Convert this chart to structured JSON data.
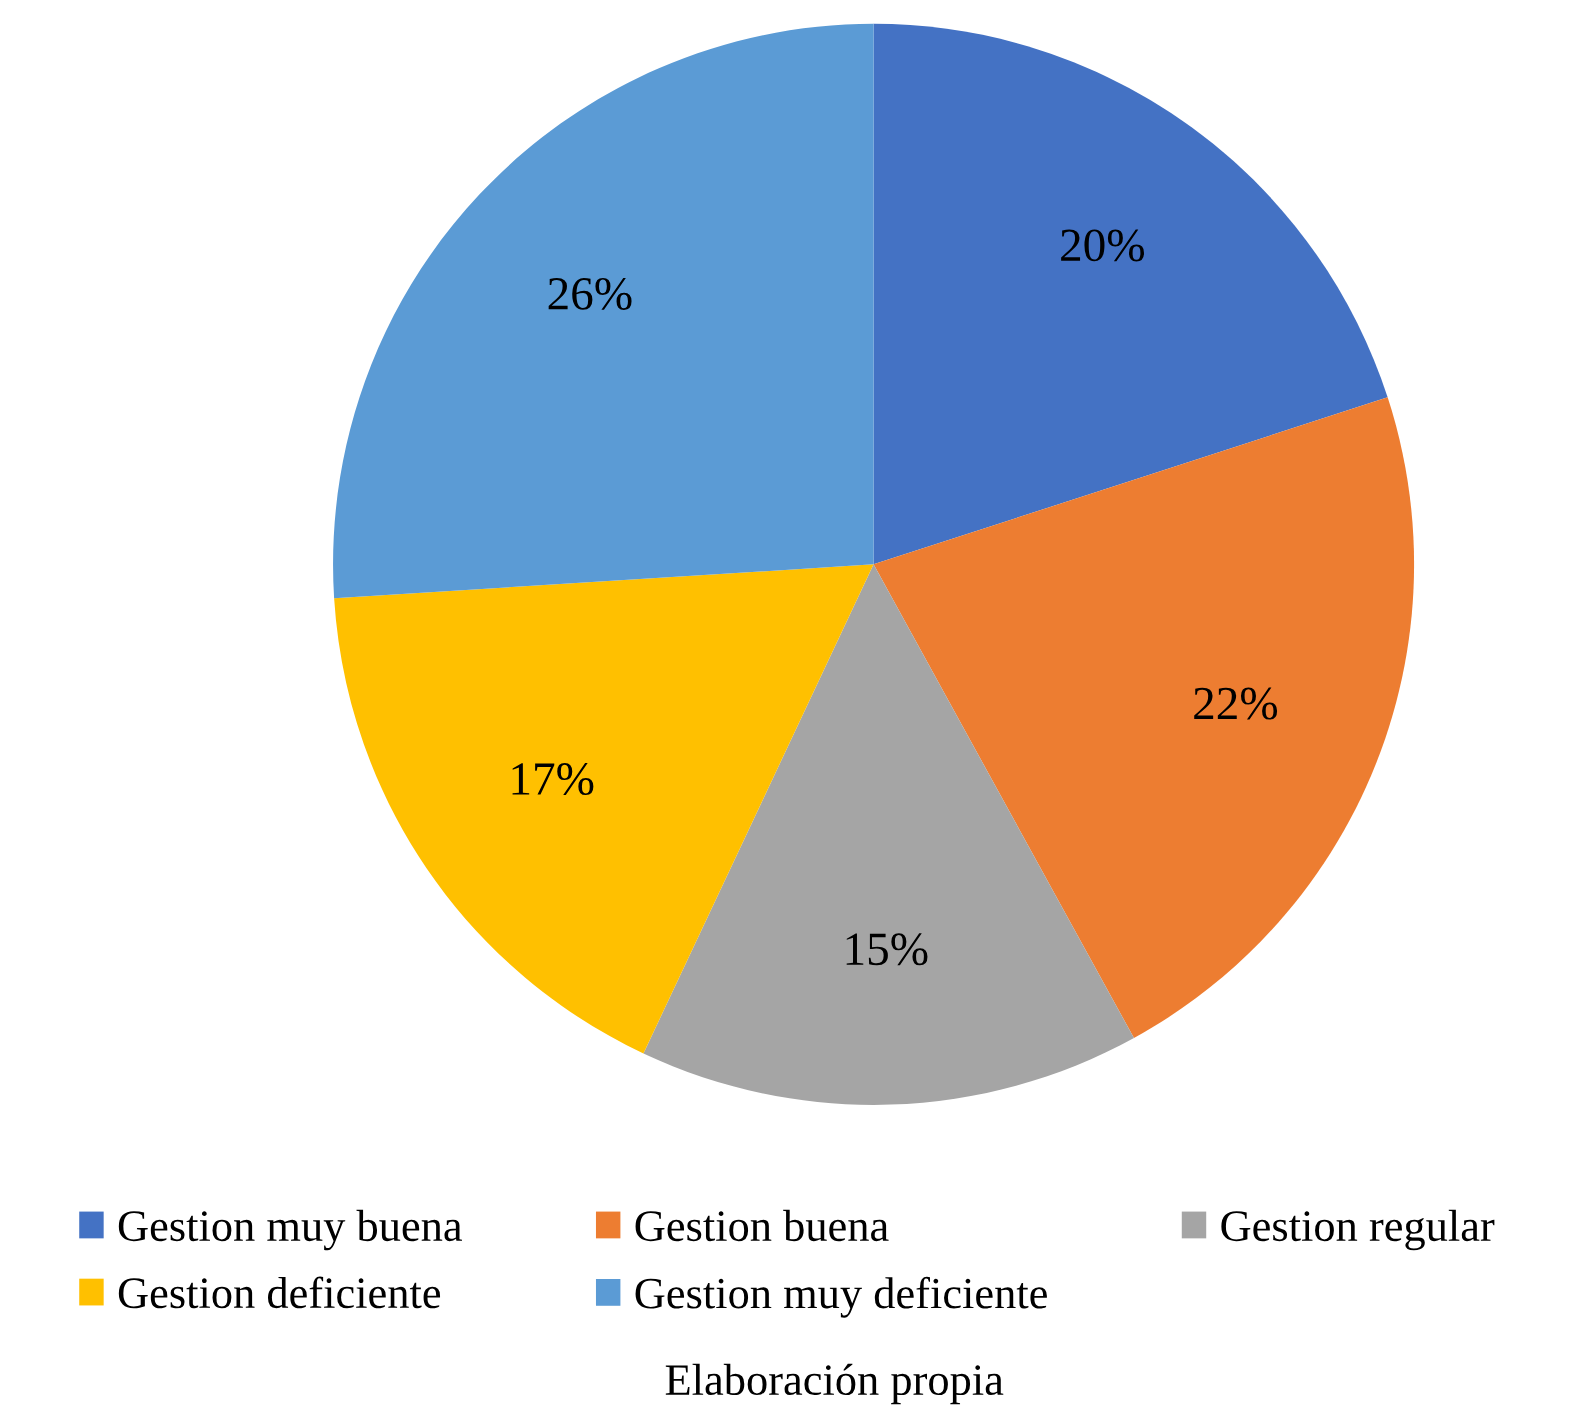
{
  "chart_data": {
    "type": "pie",
    "categories": [
      "Gestion muy buena",
      "Gestion buena",
      "Gestion regular",
      "Gestion deficiente",
      "Gestion muy deficiente"
    ],
    "values": [
      20,
      22,
      15,
      17,
      26
    ],
    "colors": [
      "#4472c4",
      "#ed7d31",
      "#a5a5a5",
      "#ffc000",
      "#5b9bd5"
    ],
    "value_labels": [
      "20%",
      "22%",
      "15%",
      "17%",
      "26%"
    ],
    "legend": "bottom",
    "annotations": [
      "Elaboración propia"
    ]
  }
}
